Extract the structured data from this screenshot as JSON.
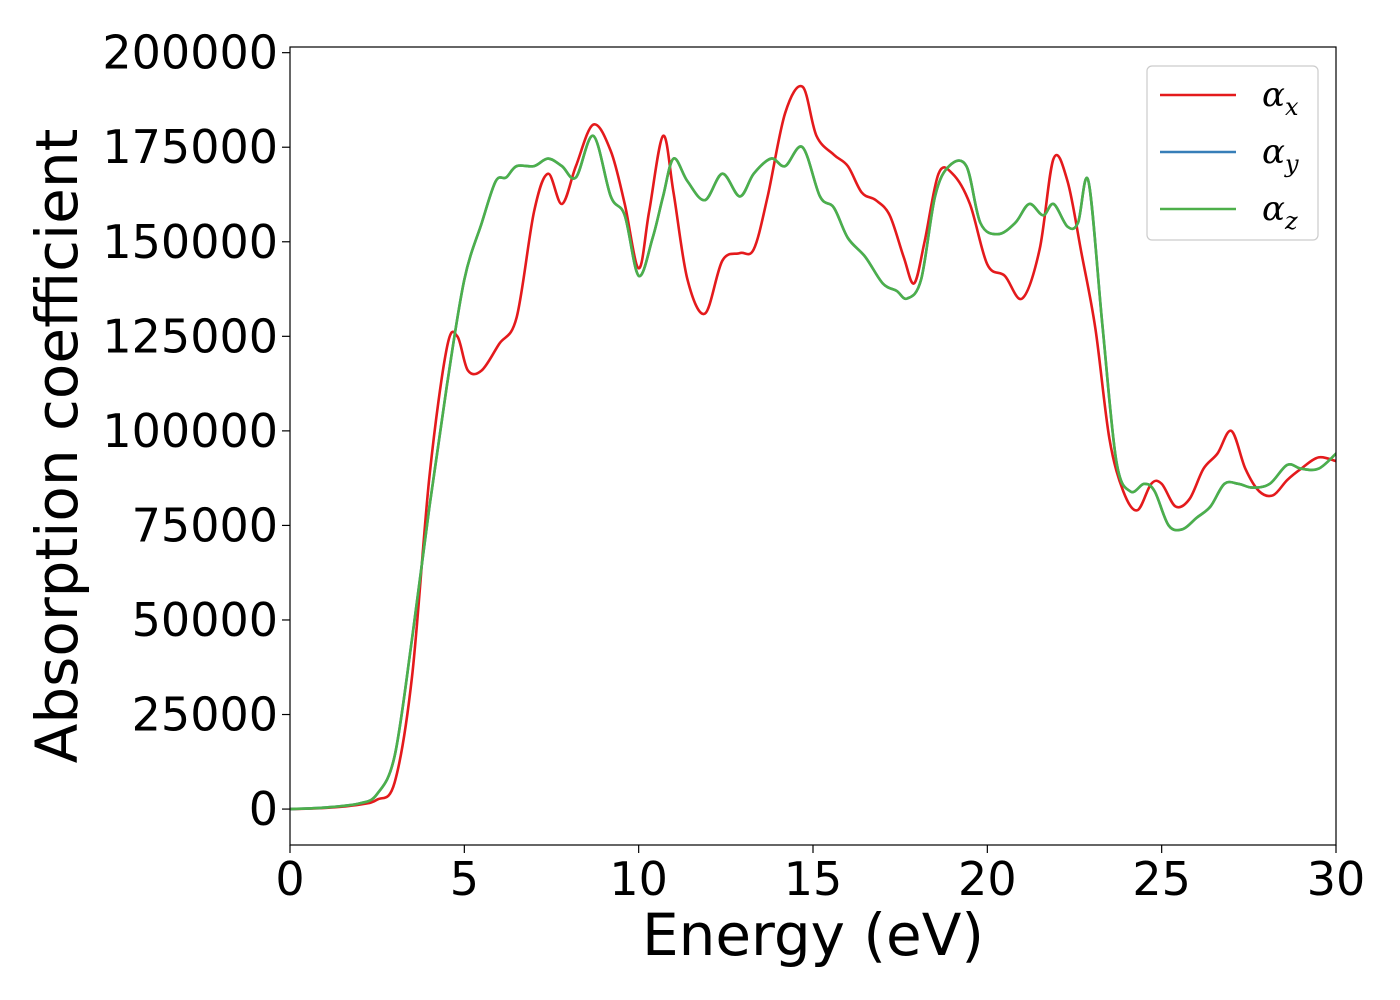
{
  "chart_data": {
    "type": "line",
    "xlabel": "Energy (eV)",
    "ylabel": "Absorption coefficient",
    "xlim": [
      0,
      30
    ],
    "ylim": [
      -9500,
      201500
    ],
    "xticks": [
      0,
      5,
      10,
      15,
      20,
      25,
      30
    ],
    "yticks": [
      0,
      25000,
      50000,
      75000,
      100000,
      125000,
      150000,
      175000,
      200000
    ],
    "grid": false,
    "legend_position": "top-right",
    "series": [
      {
        "name": "α",
        "subscript": "x",
        "color": "#e41a1c",
        "x": [
          0,
          1,
          2,
          2.5,
          3,
          3.5,
          4,
          4.5,
          4.8,
          5.1,
          5.5,
          6,
          6.5,
          7,
          7.4,
          7.8,
          8.2,
          8.7,
          9.2,
          9.6,
          10,
          10.3,
          10.7,
          11,
          11.4,
          11.9,
          12.4,
          12.9,
          13.3,
          13.7,
          14.2,
          14.7,
          15.1,
          15.6,
          16,
          16.4,
          16.8,
          17.2,
          17.6,
          17.9,
          18.2,
          18.6,
          19,
          19.5,
          20,
          20.5,
          21,
          21.5,
          21.9,
          22.3,
          22.7,
          23.1,
          23.5,
          23.9,
          24.3,
          24.7,
          25,
          25.4,
          25.8,
          26.2,
          26.6,
          27,
          27.4,
          27.8,
          28.2,
          28.6,
          29,
          29.5,
          30
        ],
        "y": [
          0,
          300,
          1200,
          2500,
          7000,
          35000,
          88000,
          122000,
          125000,
          116000,
          116000,
          123000,
          130000,
          158000,
          168000,
          160000,
          170000,
          181000,
          174000,
          160000,
          143000,
          158000,
          178000,
          163000,
          140000,
          131000,
          145000,
          147000,
          148000,
          162000,
          184000,
          191000,
          178000,
          173000,
          170000,
          163000,
          161000,
          157000,
          146000,
          139000,
          150000,
          168000,
          168000,
          160000,
          144000,
          141000,
          135000,
          148000,
          172000,
          166000,
          147000,
          127000,
          98000,
          84000,
          79000,
          86000,
          86000,
          80000,
          82000,
          90000,
          94000,
          100000,
          90000,
          84000,
          83000,
          87000,
          90000,
          93000,
          92000
        ]
      },
      {
        "name": "α",
        "subscript": "y",
        "color": "#377eb8",
        "x": [
          0,
          1,
          2,
          2.5,
          3,
          3.5,
          4,
          4.5,
          5,
          5.5,
          5.9,
          6.2,
          6.5,
          7,
          7.4,
          7.8,
          8.2,
          8.7,
          9.2,
          9.6,
          10,
          10.4,
          10.7,
          11,
          11.4,
          11.9,
          12.4,
          12.9,
          13.3,
          13.8,
          14.2,
          14.7,
          15.2,
          15.6,
          16,
          16.5,
          17,
          17.4,
          17.7,
          18.1,
          18.5,
          18.9,
          19.4,
          19.8,
          20.3,
          20.8,
          21.2,
          21.6,
          21.9,
          22.3,
          22.6,
          22.9,
          23.3,
          23.7,
          24.1,
          24.5,
          24.8,
          25.2,
          25.6,
          26,
          26.4,
          26.8,
          27.2,
          27.6,
          28.1,
          28.6,
          29,
          29.5,
          30
        ],
        "y": [
          0,
          400,
          1500,
          4000,
          14000,
          45000,
          80000,
          112000,
          140000,
          155000,
          166000,
          167000,
          170000,
          170000,
          172000,
          170000,
          167000,
          178000,
          162000,
          157000,
          141000,
          151000,
          162000,
          172000,
          166000,
          161000,
          168000,
          162000,
          168000,
          172000,
          170000,
          175000,
          162000,
          159000,
          151000,
          146000,
          139000,
          137000,
          135000,
          140000,
          162000,
          170000,
          170000,
          155000,
          152000,
          155000,
          160000,
          157000,
          160000,
          154000,
          155000,
          166000,
          128000,
          92000,
          84000,
          86000,
          84000,
          75000,
          74000,
          77000,
          80000,
          86000,
          86000,
          85000,
          86000,
          91000,
          90000,
          90000,
          94000
        ]
      },
      {
        "name": "α",
        "subscript": "z",
        "color": "#4daf4a",
        "x": [
          0,
          1,
          2,
          2.5,
          3,
          3.5,
          4,
          4.5,
          5,
          5.5,
          5.9,
          6.2,
          6.5,
          7,
          7.4,
          7.8,
          8.2,
          8.7,
          9.2,
          9.6,
          10,
          10.4,
          10.7,
          11,
          11.4,
          11.9,
          12.4,
          12.9,
          13.3,
          13.8,
          14.2,
          14.7,
          15.2,
          15.6,
          16,
          16.5,
          17,
          17.4,
          17.7,
          18.1,
          18.5,
          18.9,
          19.4,
          19.8,
          20.3,
          20.8,
          21.2,
          21.6,
          21.9,
          22.3,
          22.6,
          22.9,
          23.3,
          23.7,
          24.1,
          24.5,
          24.8,
          25.2,
          25.6,
          26,
          26.4,
          26.8,
          27.2,
          27.6,
          28.1,
          28.6,
          29,
          29.5,
          30
        ],
        "y": [
          0,
          400,
          1500,
          4000,
          14000,
          45000,
          80000,
          112000,
          140000,
          155000,
          166000,
          167000,
          170000,
          170000,
          172000,
          170000,
          167000,
          178000,
          162000,
          157000,
          141000,
          151000,
          162000,
          172000,
          166000,
          161000,
          168000,
          162000,
          168000,
          172000,
          170000,
          175000,
          162000,
          159000,
          151000,
          146000,
          139000,
          137000,
          135000,
          140000,
          162000,
          170000,
          170000,
          155000,
          152000,
          155000,
          160000,
          157000,
          160000,
          154000,
          155000,
          166000,
          128000,
          92000,
          84000,
          86000,
          84000,
          75000,
          74000,
          77000,
          80000,
          86000,
          86000,
          85000,
          86000,
          91000,
          90000,
          90000,
          94000
        ]
      }
    ]
  }
}
